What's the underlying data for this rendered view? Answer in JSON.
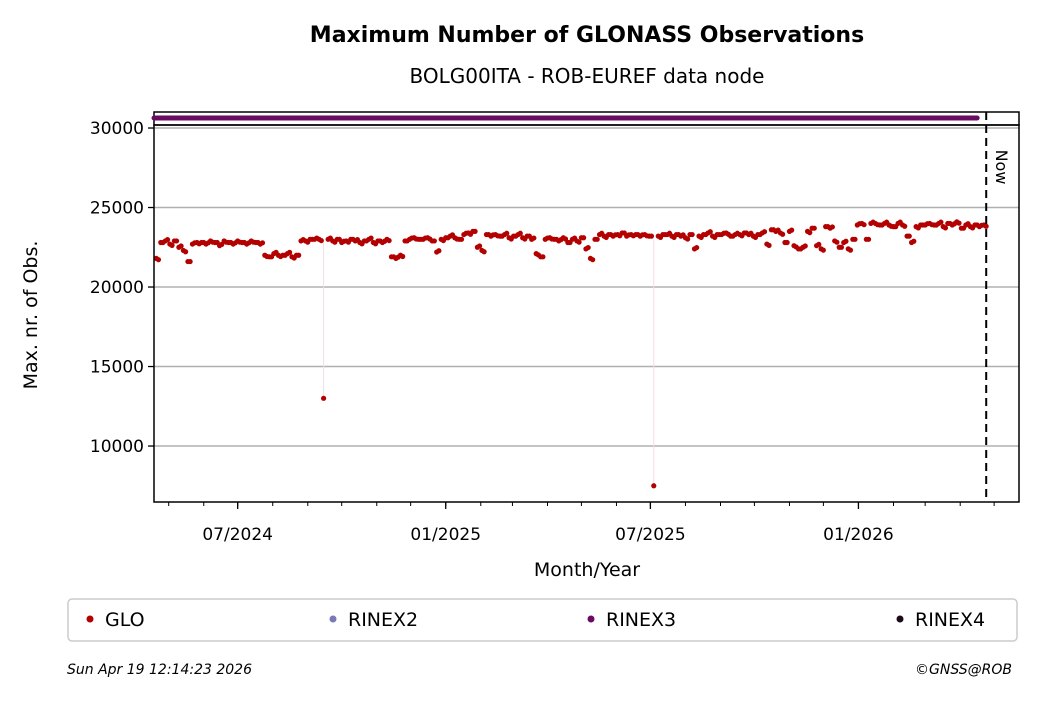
{
  "chart_data": {
    "type": "scatter",
    "title": "Maximum Number of GLONASS Observations",
    "subtitle": "BOLG00ITA - ROB-EUREF data node",
    "xlabel": "Month/Year",
    "ylabel": "Max. nr. of Obs.",
    "xlim": [
      "2024-04-18",
      "2026-05-23"
    ],
    "ylim": [
      6480,
      30190
    ],
    "grid": "horizontal",
    "y_ticks": [
      10000,
      15000,
      20000,
      25000,
      30000
    ],
    "y_tick_labels": [
      "10000",
      "15000",
      "20000",
      "25000",
      "30000"
    ],
    "x_ticks": [
      "2024-07-01",
      "2025-01-01",
      "2025-07-01",
      "2026-01-01"
    ],
    "x_tick_labels": [
      "07/2024",
      "01/2025",
      "07/2025",
      "01/2026"
    ],
    "now_label": "Now",
    "now_date": "2026-04-24",
    "glo_series": {
      "name": "GLO",
      "start_date": "2024-04-20",
      "step_days": 4,
      "values": [
        21800,
        22800,
        22900,
        22700,
        22900,
        22500,
        22300,
        21600,
        22700,
        22800,
        22800,
        22700,
        22900,
        22800,
        22600,
        22900,
        22800,
        22700,
        22900,
        22800,
        22700,
        22900,
        22800,
        22700,
        22000,
        21900,
        22100,
        22000,
        22000,
        22100,
        21900,
        22000,
        22900,
        22900,
        23000,
        23000,
        23000,
        13000,
        23000,
        22900,
        23000,
        22800,
        22900,
        23000,
        22900,
        22800,
        22900,
        23000,
        22800,
        22900,
        22800,
        23000,
        21900,
        21800,
        22000,
        22900,
        23000,
        23100,
        23000,
        23000,
        23100,
        22900,
        22200,
        23000,
        23100,
        23200,
        23100,
        23000,
        23300,
        23400,
        23500,
        22500,
        22300,
        23300,
        23200,
        23300,
        23200,
        23300,
        23100,
        23200,
        23300,
        23100,
        23200,
        23000,
        22100,
        21900,
        23000,
        23100,
        23000,
        22900,
        23100,
        22800,
        23000,
        22900,
        23100,
        22400,
        21800,
        23000,
        23300,
        23200,
        23300,
        23200,
        23300,
        23400,
        23200,
        23300,
        23300,
        23200,
        23300,
        23200,
        7500,
        23200,
        23300,
        23300,
        23200,
        23300,
        23200,
        23100,
        23300,
        22400,
        23200,
        23300,
        23400,
        23200,
        23300,
        23300,
        23400,
        23200,
        23300,
        23300,
        23400,
        23300,
        23200,
        23300,
        23400,
        22700,
        23600,
        23500,
        23400,
        22800,
        23500,
        22600,
        22400,
        22500,
        23500,
        23700,
        22600,
        22400,
        23800,
        23700,
        22900,
        22500,
        22800,
        22400,
        23000,
        23900,
        24000,
        23000,
        24000,
        24000,
        23900,
        24000,
        23900,
        23800,
        24000,
        23900,
        23200,
        22800,
        23800,
        23900,
        23900,
        24000,
        23900,
        24000,
        23800,
        24000,
        23900,
        24100,
        23700,
        23900,
        23800,
        23900,
        23800,
        23900
      ]
    },
    "rinex3_series": {
      "name": "RINEX3",
      "start_date": "2024-04-18",
      "end_date": "2026-04-16"
    },
    "legend": {
      "placement": "bottom",
      "entries": [
        {
          "label": "GLO",
          "color": "#b30000"
        },
        {
          "label": "RINEX2",
          "color": "#7b78b8"
        },
        {
          "label": "RINEX3",
          "color": "#6a0b63"
        },
        {
          "label": "RINEX4",
          "color": "#1c0a1c"
        }
      ]
    }
  },
  "footer": {
    "timestamp": "Sun Apr 19 12:14:23 2026",
    "copyright": "©GNSS@ROB"
  }
}
